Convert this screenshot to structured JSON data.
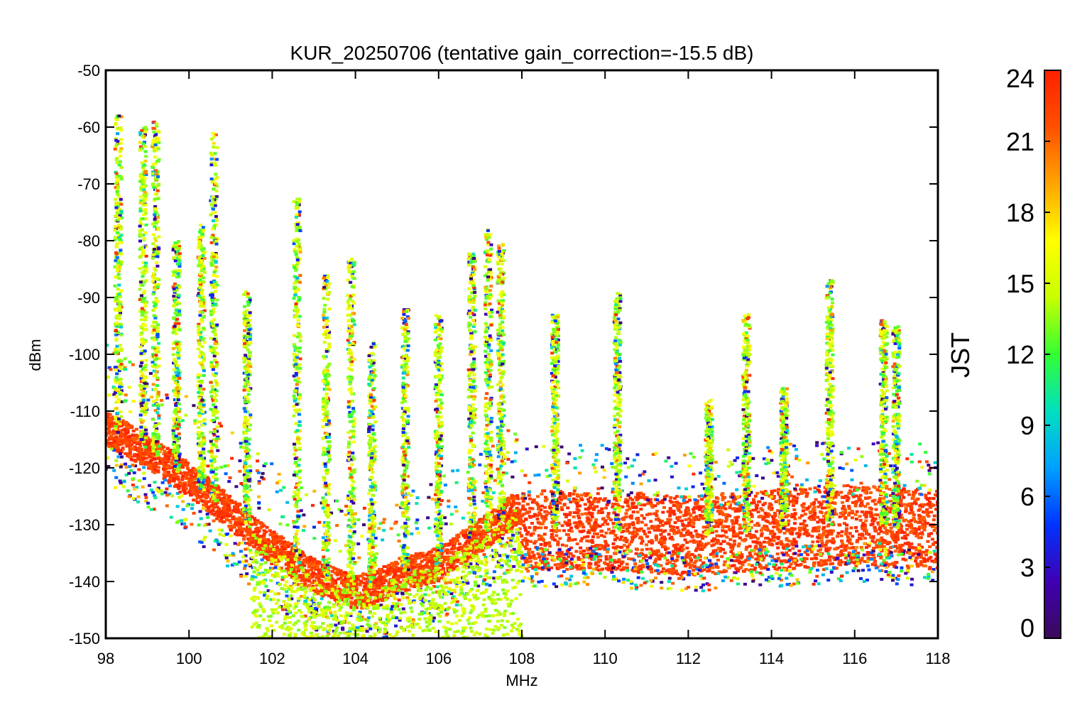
{
  "chart_data": {
    "type": "scatter",
    "title": "KUR_20250706 (tentative gain_correction=-15.5 dB)",
    "xlabel": "MHz",
    "ylabel": "dBm",
    "xlim": [
      98,
      118
    ],
    "ylim": [
      -150,
      -50
    ],
    "xticks": [
      "98",
      "100",
      "102",
      "104",
      "106",
      "108",
      "110",
      "112",
      "114",
      "116",
      "118"
    ],
    "yticks": [
      "-50",
      "-60",
      "-70",
      "-80",
      "-90",
      "-100",
      "-110",
      "-120",
      "-130",
      "-140",
      "-150"
    ],
    "grid": false,
    "colorbar": {
      "label": "JST",
      "range": [
        0,
        24
      ],
      "ticks": [
        "24",
        "21",
        "18",
        "15",
        "12",
        "9",
        "6",
        "3",
        "0"
      ],
      "colormap": "rainbow",
      "colors": [
        "#3b0a5a",
        "#3f00b3",
        "#0033ff",
        "#00a0ff",
        "#00e0c0",
        "#33ff33",
        "#c8ff00",
        "#ffff00",
        "#ffa500",
        "#ff5000",
        "#ff2000"
      ]
    },
    "series": [
      {
        "points_by_hour": "colour encodes JST hour",
        "noise_floor": {
          "x": [
            98,
            99,
            100,
            101,
            102,
            103,
            104,
            104.5,
            105,
            106,
            107,
            107.9,
            108,
            110,
            112,
            114,
            116,
            118
          ],
          "y": [
            -113,
            -117,
            -122,
            -128,
            -134,
            -139,
            -142,
            -141,
            -139,
            -137,
            -132,
            -127,
            -131,
            -131,
            -132,
            -131,
            -130,
            -131
          ]
        },
        "peaks": {
          "x": [
            98.3,
            98.9,
            99.2,
            99.7,
            100.3,
            100.6,
            101.4,
            102.6,
            103.3,
            103.9,
            104.4,
            105.2,
            106.0,
            106.8,
            107.2,
            107.5,
            108.8,
            110.3,
            112.5,
            113.4,
            114.3,
            115.4,
            116.7,
            117.0
          ],
          "y": [
            -58,
            -60,
            -59,
            -80,
            -77,
            -61,
            -89,
            -72,
            -86,
            -83,
            -98,
            -92,
            -93,
            -82,
            -78,
            -80,
            -93,
            -89,
            -108,
            -93,
            -106,
            -87,
            -94,
            -95
          ]
        }
      }
    ]
  }
}
